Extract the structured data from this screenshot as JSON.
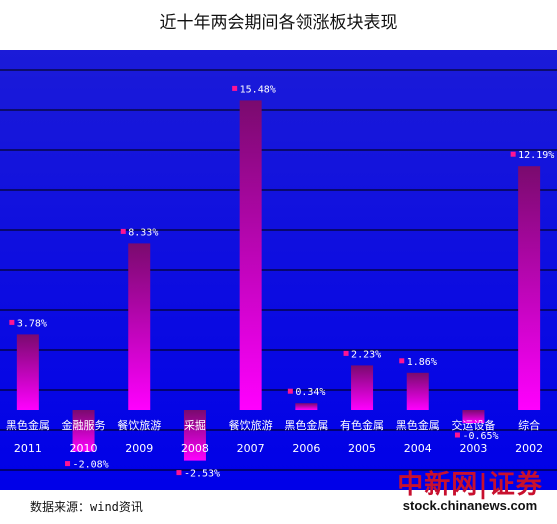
{
  "title": "近十年两会期间各领涨板块表现",
  "source_note": "数据来源：wind资讯",
  "watermark": {
    "brand": "中新网|证券",
    "url": "stock.chinanews.com"
  },
  "colors": {
    "plot_bg_top": "#1b1bd8",
    "plot_bg_bottom": "#0000e8",
    "bar_top": "#7a0a6e",
    "bar_bottom": "#ff00ff",
    "gridline": "#000000",
    "marker": "#ff1493",
    "label_text": "#ffffff"
  },
  "chart_data": {
    "type": "bar",
    "categories": [
      "2011",
      "2010",
      "2009",
      "2008",
      "2007",
      "2006",
      "2005",
      "2004",
      "2003",
      "2002"
    ],
    "sectors": [
      "黑色金属",
      "金融服务",
      "餐饮旅游",
      "采掘",
      "餐饮旅游",
      "黑色金属",
      "有色金属",
      "黑色金属",
      "交运设备",
      "综合"
    ],
    "values": [
      3.78,
      -2.08,
      8.33,
      -2.53,
      15.48,
      0.34,
      2.23,
      1.86,
      -0.65,
      12.19
    ],
    "value_labels": [
      "3.78%",
      "-2.08%",
      "8.33%",
      "-2.53%",
      "15.48%",
      "0.34%",
      "2.23%",
      "1.86%",
      "-0.65%",
      "12.19%"
    ],
    "ylim": [
      -3,
      18
    ],
    "grid": true,
    "legend": "none"
  }
}
